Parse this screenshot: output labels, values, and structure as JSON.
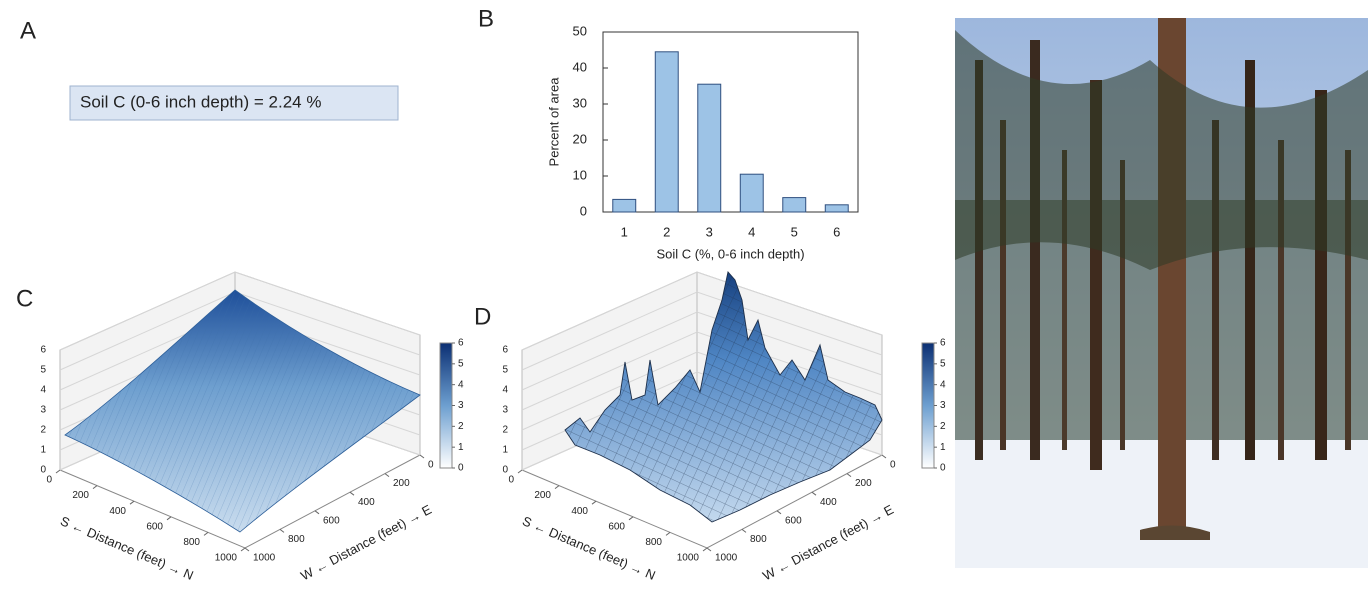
{
  "panels": {
    "a": "A",
    "b": "B",
    "c": "C",
    "d": "D"
  },
  "summary": "Soil C (0-6 inch depth) =  2.24 %",
  "chart_data": [
    {
      "type": "bar",
      "categories": [
        "1",
        "2",
        "3",
        "4",
        "5",
        "6"
      ],
      "values": [
        3.5,
        44.5,
        35.5,
        10.5,
        4,
        2
      ],
      "color": "#9dc3e6",
      "ylim": [
        0,
        50
      ],
      "yticks": [
        0,
        10,
        20,
        30,
        40,
        50
      ],
      "ylabel": "Percent of area",
      "xlabel": "Soil C (%, 0-6 inch depth)"
    },
    {
      "type": "surface",
      "zlim": [
        0,
        6
      ],
      "zticks": [
        0,
        1,
        2,
        3,
        4,
        5,
        6
      ],
      "xlim": [
        0,
        1000
      ],
      "xticks": [
        0,
        200,
        400,
        600,
        800,
        1000
      ],
      "ylim": [
        0,
        1000
      ],
      "yticks": [
        0,
        200,
        400,
        600,
        800,
        1000
      ],
      "xlabel": "S ← Distance (feet) → N",
      "ylabel": "W ← Distance (feet) → E",
      "clim": [
        0,
        6
      ],
      "cticks": [
        0,
        1,
        2,
        3,
        4,
        5,
        6
      ]
    },
    {
      "type": "surface",
      "zlim": [
        0,
        6
      ],
      "zticks": [
        0,
        1,
        2,
        3,
        4,
        5,
        6
      ],
      "xlim": [
        0,
        1000
      ],
      "xticks": [
        0,
        200,
        400,
        600,
        800,
        1000
      ],
      "ylim": [
        0,
        1000
      ],
      "yticks": [
        0,
        200,
        400,
        600,
        800,
        1000
      ],
      "xlabel": "S ← Distance (feet) → N",
      "ylabel": "W ← Distance (feet) → E",
      "clim": [
        0,
        6
      ],
      "cticks": [
        0,
        1,
        2,
        3,
        4,
        5,
        6
      ]
    }
  ]
}
